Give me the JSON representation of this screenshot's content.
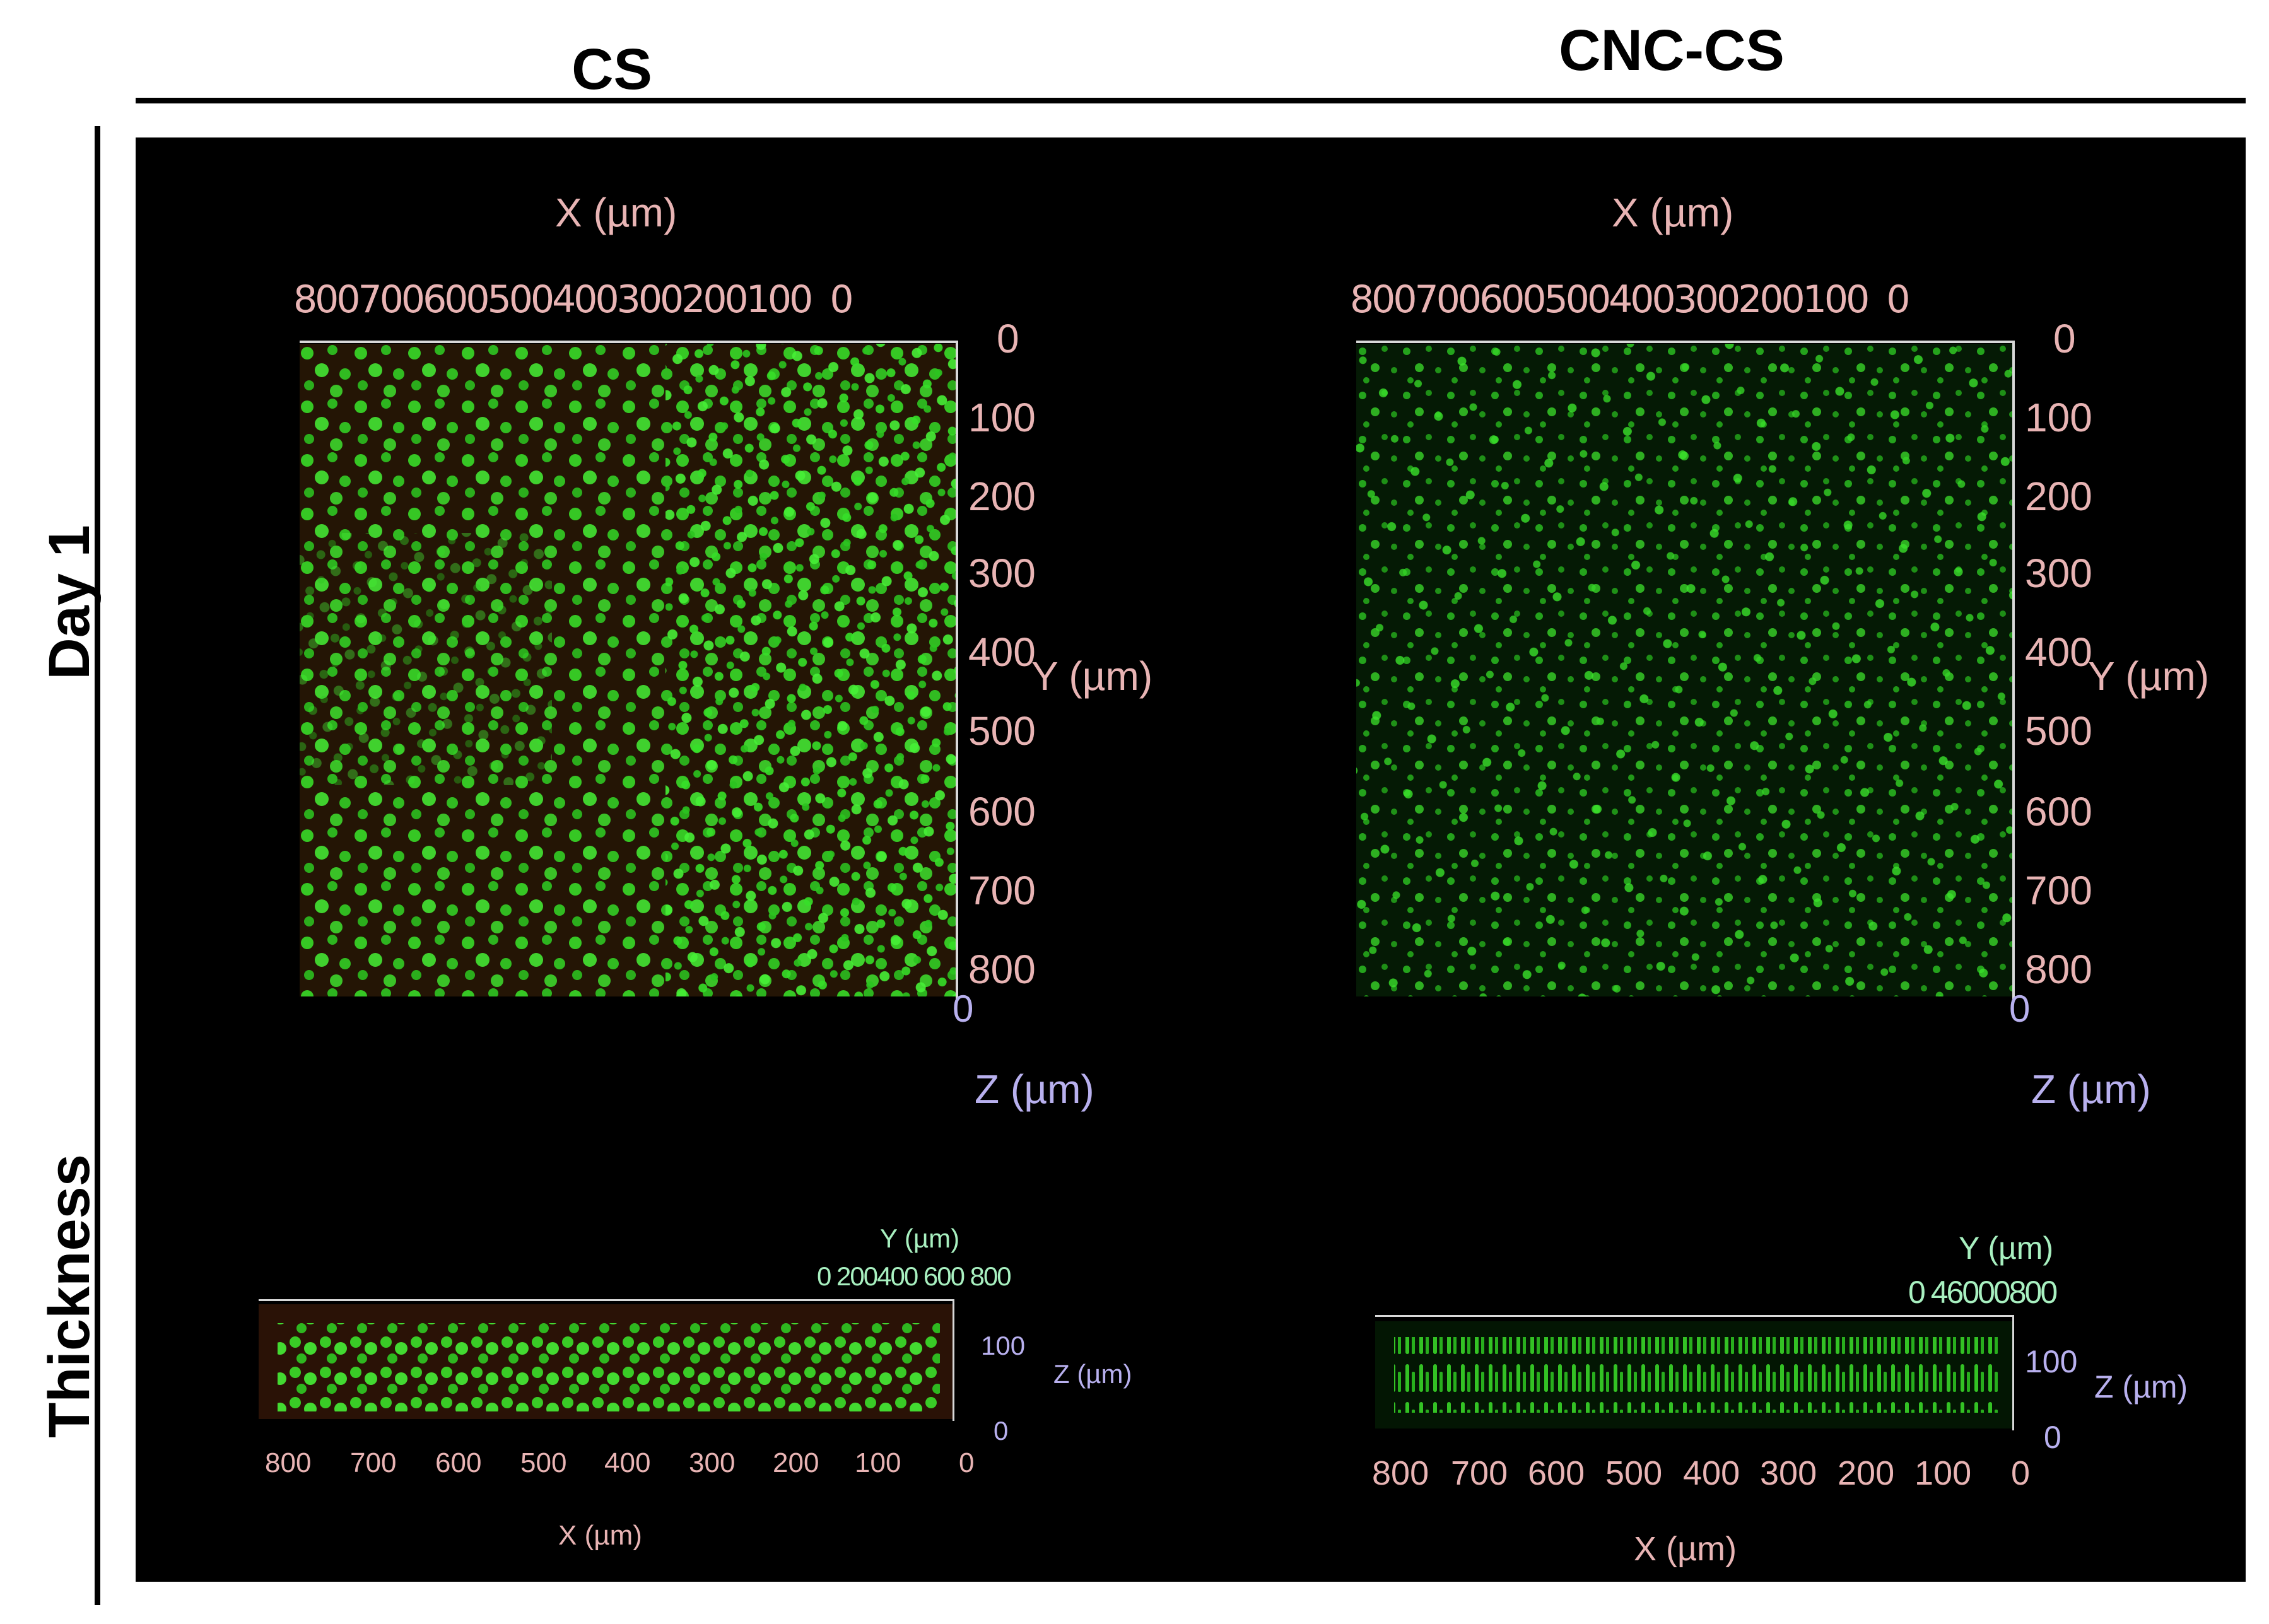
{
  "columns": {
    "left": "CS",
    "right": "CNC-CS"
  },
  "rows": {
    "top": "Day 1",
    "bottom": "Thickness"
  },
  "colors": {
    "cell_green": "#39e62a",
    "axis_pink": "#e8b4b4",
    "axis_violet": "#b8b0ee",
    "axis_mint": "#a8f0c0",
    "background": "#000000"
  },
  "top_panel": {
    "x_axis_title": "X (µm)",
    "x_ticks": [
      "800",
      "700",
      "600",
      "500",
      "400",
      "300",
      "200",
      "100",
      "0"
    ],
    "y_axis_title": "Y (µm)",
    "y_ticks": [
      "0",
      "100",
      "200",
      "300",
      "400",
      "500",
      "600",
      "700",
      "800"
    ],
    "z_axis_title": "Z (µm)",
    "z_tick": "0"
  },
  "bottom_panel": {
    "x_axis_title": "X (µm)",
    "x_ticks": [
      "800",
      "700",
      "600",
      "500",
      "400",
      "300",
      "200",
      "100",
      "0"
    ],
    "y_axis_title": "Y (µm)",
    "y_ticks_left": "0 200400 600 800",
    "y_ticks_right": "0 46000800",
    "z_axis_title": "Z (µm)",
    "z_ticks": [
      "100",
      "0"
    ]
  }
}
